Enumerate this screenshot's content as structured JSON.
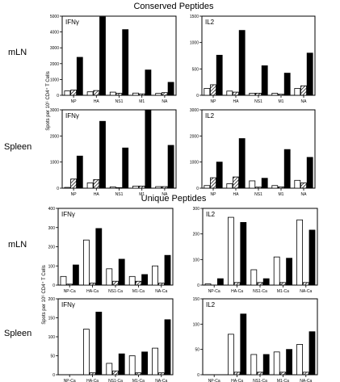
{
  "sections": {
    "conserved": "Conserved Peptides",
    "unique": "Unique Peptides"
  },
  "rows": {
    "mln": "mLN",
    "spleen": "Spleen"
  },
  "y_axis_title": "Spots per 10⁶ CD4⁺ T Cells",
  "colors": {
    "ink": "#000000",
    "bar_fill_black": "#000000",
    "bar_fill_white": "#ffffff",
    "background": "#ffffff"
  },
  "chart_data": [
    {
      "type": "bar",
      "section": "conserved",
      "tissue": "mLN",
      "title": "IFNγ",
      "categories": [
        "NP",
        "HA",
        "NS1",
        "M1",
        "NA"
      ],
      "ylim": [
        0,
        5000
      ],
      "yticks": [
        0,
        1000,
        2000,
        3000,
        4000,
        5000
      ],
      "series": [
        {
          "pattern": "white",
          "values": [
            280,
            220,
            200,
            140,
            120
          ]
        },
        {
          "pattern": "hatched",
          "values": [
            330,
            300,
            130,
            90,
            170
          ]
        },
        {
          "pattern": "black",
          "values": [
            2400,
            4950,
            4150,
            1600,
            820
          ]
        }
      ]
    },
    {
      "type": "bar",
      "section": "conserved",
      "tissue": "mLN",
      "title": "IL2",
      "categories": [
        "NP",
        "HA",
        "NS1",
        "M1",
        "NA"
      ],
      "ylim": [
        0,
        1500
      ],
      "yticks": [
        0,
        500,
        1000,
        1500
      ],
      "series": [
        {
          "pattern": "white",
          "values": [
            130,
            80,
            40,
            40,
            130
          ]
        },
        {
          "pattern": "hatched",
          "values": [
            200,
            60,
            40,
            20,
            180
          ]
        },
        {
          "pattern": "black",
          "values": [
            760,
            1230,
            560,
            420,
            800
          ]
        }
      ]
    },
    {
      "type": "bar",
      "section": "conserved",
      "tissue": "Spleen",
      "title": "IFNγ",
      "categories": [
        "NP",
        "HA",
        "NS1",
        "M1",
        "NA"
      ],
      "ylim": [
        0,
        3000
      ],
      "yticks": [
        0,
        1000,
        2000,
        3000
      ],
      "series": [
        {
          "pattern": "white",
          "values": [
            30,
            200,
            50,
            80,
            60
          ]
        },
        {
          "pattern": "hatched",
          "values": [
            350,
            330,
            20,
            80,
            60
          ]
        },
        {
          "pattern": "black",
          "values": [
            1230,
            2560,
            1540,
            2980,
            1640
          ]
        }
      ]
    },
    {
      "type": "bar",
      "section": "conserved",
      "tissue": "Spleen",
      "title": "IL2",
      "categories": [
        "NP",
        "HA",
        "NS1",
        "M1",
        "NA"
      ],
      "ylim": [
        0,
        3000
      ],
      "yticks": [
        0,
        1000,
        2000,
        3000
      ],
      "series": [
        {
          "pattern": "white",
          "values": [
            100,
            170,
            280,
            100,
            300
          ]
        },
        {
          "pattern": "hatched",
          "values": [
            400,
            430,
            40,
            50,
            200
          ]
        },
        {
          "pattern": "black",
          "values": [
            1000,
            1900,
            380,
            1480,
            1180
          ]
        }
      ]
    },
    {
      "type": "bar",
      "section": "unique",
      "tissue": "mLN",
      "title": "IFNγ",
      "categories": [
        "NP-Ca",
        "HA-Ca",
        "NS1-Ca",
        "M1-Ca",
        "NA-Ca"
      ],
      "ylim": [
        0,
        400
      ],
      "yticks": [
        0,
        100,
        200,
        300,
        400
      ],
      "series": [
        {
          "pattern": "white",
          "values": [
            45,
            235,
            85,
            45,
            100
          ]
        },
        {
          "pattern": "hatched",
          "values": [
            5,
            10,
            20,
            20,
            10
          ]
        },
        {
          "pattern": "black",
          "values": [
            105,
            295,
            135,
            55,
            155
          ]
        }
      ]
    },
    {
      "type": "bar",
      "section": "unique",
      "tissue": "mLN",
      "title": "IL2",
      "categories": [
        "NP-Ca",
        "HA-Ca",
        "NS1-Ca",
        "M1-Ca",
        "NA-Ca"
      ],
      "ylim": [
        0,
        300
      ],
      "yticks": [
        0,
        100,
        200,
        300
      ],
      "series": [
        {
          "pattern": "white",
          "values": [
            5,
            265,
            60,
            110,
            255
          ]
        },
        {
          "pattern": "hatched",
          "values": [
            0,
            10,
            10,
            10,
            10
          ]
        },
        {
          "pattern": "black",
          "values": [
            25,
            245,
            25,
            105,
            215
          ]
        }
      ]
    },
    {
      "type": "bar",
      "section": "unique",
      "tissue": "Spleen",
      "title": "IFNγ",
      "categories": [
        "NP-Ca",
        "HA-Ca",
        "NS1-Ca",
        "M1-Ca",
        "NA-Ca"
      ],
      "ylim": [
        0,
        200
      ],
      "yticks": [
        0,
        50,
        100,
        150,
        200
      ],
      "series": [
        {
          "pattern": "white",
          "values": [
            0,
            120,
            30,
            50,
            70
          ]
        },
        {
          "pattern": "hatched",
          "values": [
            0,
            5,
            10,
            5,
            5
          ]
        },
        {
          "pattern": "black",
          "values": [
            0,
            165,
            55,
            60,
            145
          ]
        }
      ]
    },
    {
      "type": "bar",
      "section": "unique",
      "tissue": "Spleen",
      "title": "IL2",
      "categories": [
        "NP-Ca",
        "HA-Ca",
        "NS1-Ca",
        "M1-Ca",
        "NA-Ca"
      ],
      "ylim": [
        0,
        150
      ],
      "yticks": [
        0,
        50,
        100,
        150
      ],
      "series": [
        {
          "pattern": "white",
          "values": [
            0,
            80,
            40,
            45,
            60
          ]
        },
        {
          "pattern": "hatched",
          "values": [
            0,
            5,
            5,
            5,
            5
          ]
        },
        {
          "pattern": "black",
          "values": [
            0,
            120,
            40,
            50,
            85
          ]
        }
      ]
    }
  ]
}
